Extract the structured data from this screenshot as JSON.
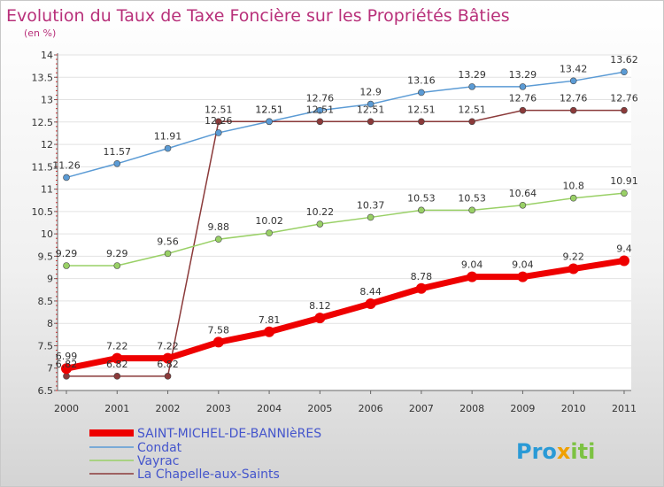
{
  "chart_data": {
    "type": "line",
    "title": "Evolution du Taux de Taxe Foncière sur les Propriétés Bâties",
    "subtitle": "(en %)",
    "x": [
      "2000",
      "2001",
      "2002",
      "2003",
      "2004",
      "2005",
      "2006",
      "2007",
      "2008",
      "2009",
      "2010",
      "2011"
    ],
    "ylim": [
      6.5,
      14
    ],
    "yticks": [
      "6.5",
      "7",
      "7.5",
      "8",
      "8.5",
      "9",
      "9.5",
      "10",
      "10.5",
      "11",
      "11.5",
      "12",
      "12.5",
      "13",
      "13.5",
      "14"
    ],
    "series": [
      {
        "name": "SAINT-MICHEL-DE-BANNIèRES",
        "color": "#ee0000",
        "values": [
          6.99,
          7.22,
          7.22,
          7.58,
          7.81,
          8.12,
          8.44,
          8.78,
          9.04,
          9.04,
          9.22,
          9.4
        ],
        "labels": [
          "6.99",
          "7.22",
          "7.22",
          "7.58",
          "7.81",
          "8.12",
          "8.44",
          "8.78",
          "9.04",
          "9.04",
          "9.22",
          "9.4"
        ]
      },
      {
        "name": "Condat",
        "color": "#5b9bd5",
        "values": [
          11.26,
          11.57,
          11.91,
          12.26,
          12.51,
          12.76,
          12.9,
          13.16,
          13.29,
          13.29,
          13.42,
          13.62
        ],
        "labels": [
          "11.26",
          "11.57",
          "11.91",
          "12.26",
          "12.51",
          "12.76",
          "12.9",
          "13.16",
          "13.29",
          "13.29",
          "13.42",
          "13.62"
        ]
      },
      {
        "name": "Vayrac",
        "color": "#99d066",
        "values": [
          9.29,
          9.29,
          9.56,
          9.88,
          10.02,
          10.22,
          10.37,
          10.53,
          10.53,
          10.64,
          10.8,
          10.91
        ],
        "labels": [
          "9.29",
          "9.29",
          "9.56",
          "9.88",
          "10.02",
          "10.22",
          "10.37",
          "10.53",
          "10.53",
          "10.64",
          "10.8",
          "10.91"
        ]
      },
      {
        "name": "La Chapelle-aux-Saints",
        "color": "#8b3a3a",
        "values": [
          6.82,
          6.82,
          6.82,
          12.51,
          12.51,
          12.51,
          12.51,
          12.51,
          12.51,
          12.76,
          12.76,
          12.76
        ],
        "labels": [
          "6.82",
          "6.82",
          "6.82",
          "12.51",
          "12.51",
          "12.51",
          "12.51",
          "12.51",
          "12.51",
          "12.76",
          "12.76",
          "12.76"
        ]
      }
    ]
  },
  "logo": {
    "p1": "Pro",
    "p2": "x",
    "p3": "iti"
  }
}
